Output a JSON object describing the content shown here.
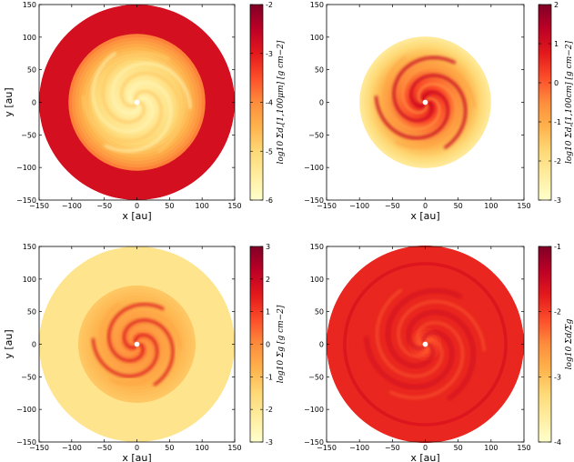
{
  "chart_data": [
    {
      "type": "heatmap",
      "title": "",
      "xlabel": "x [au]",
      "ylabel": "y [au]",
      "xlim": [
        -150,
        150
      ],
      "ylim": [
        -150,
        150
      ],
      "xticks": [
        "−150",
        "−100",
        "−50",
        "0",
        "50",
        "100",
        "150"
      ],
      "yticks": [
        "150",
        "100",
        "50",
        "0",
        "−50",
        "−100",
        "−150"
      ],
      "colorbar": {
        "label": "log10 Σd,[1,100μm] [g cm−2]",
        "range": [
          -6,
          -2
        ],
        "ticks": [
          "-2",
          "-3",
          "-4",
          "-5",
          "-6"
        ]
      },
      "disk": {
        "outer_radius": 150,
        "inner_radius": 4,
        "outer_level": 0.8,
        "inner_level": 0.1,
        "spiral_arms": 3
      }
    },
    {
      "type": "heatmap",
      "title": "",
      "xlabel": "x [au]",
      "ylabel": "",
      "xlim": [
        -150,
        150
      ],
      "ylim": [
        -150,
        150
      ],
      "xticks": [
        "−150",
        "−100",
        "−50",
        "0",
        "50",
        "100",
        "150"
      ],
      "yticks": [
        "150",
        "100",
        "50",
        "0",
        "−50",
        "−100",
        "−150"
      ],
      "colorbar": {
        "label": "log10 Σd,[1,100cm] [g cm−2]",
        "range": [
          -3,
          2
        ],
        "ticks": [
          "2",
          "1",
          "0",
          "-1",
          "-2",
          "-3"
        ]
      },
      "disk": {
        "outer_radius": 100,
        "inner_radius": 4,
        "outer_level": 0.1,
        "inner_level": 0.75,
        "spiral_arms": 3
      }
    },
    {
      "type": "heatmap",
      "title": "",
      "xlabel": "x [au]",
      "ylabel": "y [au]",
      "xlim": [
        -150,
        150
      ],
      "ylim": [
        -150,
        150
      ],
      "xticks": [
        "−150",
        "−100",
        "−50",
        "0",
        "50",
        "100",
        "150"
      ],
      "yticks": [
        "150",
        "100",
        "50",
        "0",
        "−50",
        "−100",
        "−150"
      ],
      "colorbar": {
        "label": "log10 Σg [g cm−2]",
        "range": [
          -3,
          3
        ],
        "ticks": [
          "3",
          "2",
          "1",
          "0",
          "-1",
          "-2",
          "-3"
        ]
      },
      "disk": {
        "outer_radius": 150,
        "inner_radius": 4,
        "outer_level": 0.18,
        "inner_level": 0.6,
        "spiral_arms": 3
      }
    },
    {
      "type": "heatmap",
      "title": "",
      "xlabel": "x [au]",
      "ylabel": "",
      "xlim": [
        -150,
        150
      ],
      "ylim": [
        -150,
        150
      ],
      "xticks": [
        "−150",
        "−100",
        "−50",
        "0",
        "50",
        "100",
        "150"
      ],
      "yticks": [
        "150",
        "100",
        "50",
        "0",
        "−50",
        "−100",
        "−150"
      ],
      "colorbar": {
        "label": "log10 Σd/Σg",
        "range": [
          -4,
          -1
        ],
        "ticks": [
          "-1",
          "-2",
          "-3",
          "-4"
        ]
      },
      "disk": {
        "outer_radius": 150,
        "inner_radius": 4,
        "outer_level": 0.72,
        "inner_level": 0.72,
        "spiral_arms": 3
      }
    }
  ]
}
